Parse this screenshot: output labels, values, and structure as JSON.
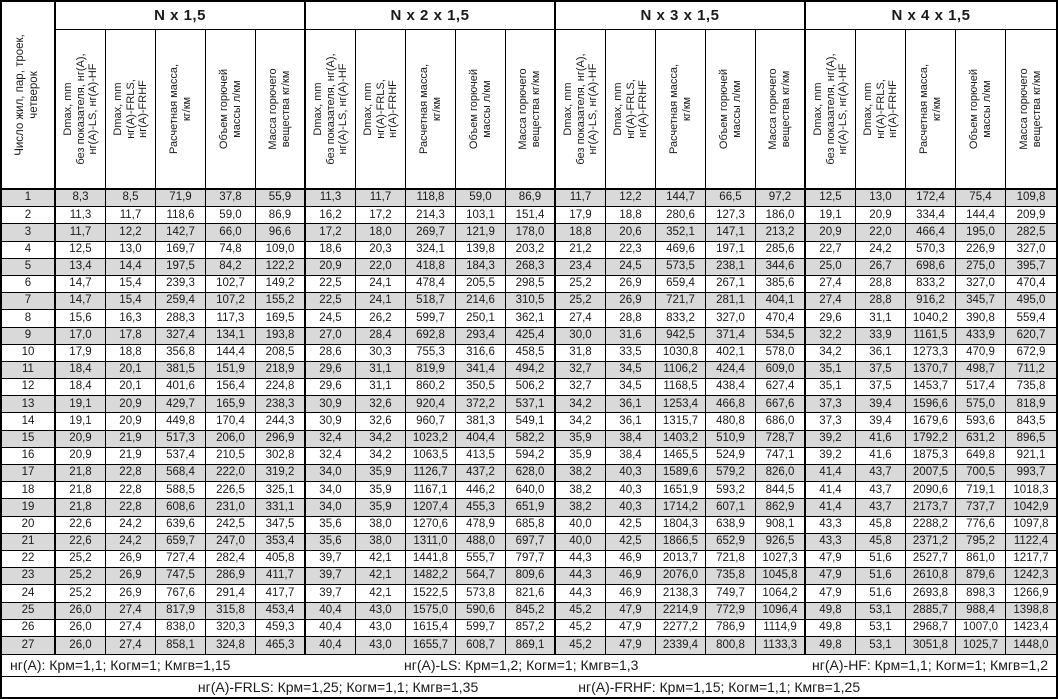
{
  "table": {
    "corner_header": "Число жил, пар, троек,\nчетверок",
    "groups": [
      {
        "title": "N x 1,5"
      },
      {
        "title": "N x 2 x 1,5"
      },
      {
        "title": "N x 3 x 1,5"
      },
      {
        "title": "N x 4 x 1,5"
      }
    ],
    "col_headers": [
      "Dmax, mm\nбез показателя, нг(A),\nнг(A)-LS, нг(A)-HF",
      "Dmax, mm\nнг(A)-FRLS,\nнг(A)-FRHF",
      "Расчетная масса,\nкг/км",
      "Объем горючей\nмассы л/км",
      "Масса горючего\nвещества кг/км"
    ],
    "rows": [
      [
        "1",
        "8,3",
        "8,5",
        "71,9",
        "37,8",
        "55,9",
        "11,3",
        "11,7",
        "118,8",
        "59,0",
        "86,9",
        "11,7",
        "12,2",
        "144,7",
        "66,5",
        "97,2",
        "12,5",
        "13,0",
        "172,4",
        "75,4",
        "109,8"
      ],
      [
        "2",
        "11,3",
        "11,7",
        "118,6",
        "59,0",
        "86,9",
        "16,2",
        "17,2",
        "214,3",
        "103,1",
        "151,4",
        "17,9",
        "18,8",
        "280,6",
        "127,3",
        "186,0",
        "19,1",
        "20,9",
        "334,4",
        "144,4",
        "209,9"
      ],
      [
        "3",
        "11,7",
        "12,2",
        "142,7",
        "66,0",
        "96,6",
        "17,2",
        "18,0",
        "269,7",
        "121,9",
        "178,0",
        "18,8",
        "20,6",
        "352,1",
        "147,1",
        "213,2",
        "20,9",
        "22,0",
        "466,4",
        "195,0",
        "282,5"
      ],
      [
        "4",
        "12,5",
        "13,0",
        "169,7",
        "74,8",
        "109,0",
        "18,6",
        "20,3",
        "324,1",
        "139,8",
        "203,2",
        "21,2",
        "22,3",
        "469,6",
        "197,1",
        "285,6",
        "22,7",
        "24,2",
        "570,3",
        "226,9",
        "327,0"
      ],
      [
        "5",
        "13,4",
        "14,4",
        "197,5",
        "84,2",
        "122,2",
        "20,9",
        "22,0",
        "418,8",
        "184,3",
        "268,3",
        "23,4",
        "24,5",
        "573,5",
        "238,1",
        "344,6",
        "25,0",
        "26,7",
        "698,6",
        "275,0",
        "395,7"
      ],
      [
        "6",
        "14,7",
        "15,4",
        "239,3",
        "102,7",
        "149,2",
        "22,5",
        "24,1",
        "478,4",
        "205,5",
        "298,5",
        "25,2",
        "26,9",
        "659,4",
        "267,1",
        "385,6",
        "27,4",
        "28,8",
        "833,2",
        "327,0",
        "470,4"
      ],
      [
        "7",
        "14,7",
        "15,4",
        "259,4",
        "107,2",
        "155,2",
        "22,5",
        "24,1",
        "518,7",
        "214,6",
        "310,5",
        "25,2",
        "26,9",
        "721,7",
        "281,1",
        "404,1",
        "27,4",
        "28,8",
        "916,2",
        "345,7",
        "495,0"
      ],
      [
        "8",
        "15,6",
        "16,3",
        "288,3",
        "117,3",
        "169,5",
        "24,5",
        "26,2",
        "599,7",
        "250,1",
        "362,1",
        "27,4",
        "28,8",
        "833,2",
        "327,0",
        "470,4",
        "29,6",
        "31,1",
        "1040,2",
        "390,8",
        "559,4"
      ],
      [
        "9",
        "17,0",
        "17,8",
        "327,4",
        "134,1",
        "193,8",
        "27,0",
        "28,4",
        "692,8",
        "293,4",
        "425,4",
        "30,0",
        "31,6",
        "942,5",
        "371,4",
        "534,5",
        "32,2",
        "33,9",
        "1161,5",
        "433,9",
        "620,7"
      ],
      [
        "10",
        "17,9",
        "18,8",
        "356,8",
        "144,4",
        "208,5",
        "28,6",
        "30,3",
        "755,3",
        "316,6",
        "458,5",
        "31,8",
        "33,5",
        "1030,8",
        "402,1",
        "578,0",
        "34,2",
        "36,1",
        "1273,3",
        "470,9",
        "672,9"
      ],
      [
        "11",
        "18,4",
        "20,1",
        "381,5",
        "151,9",
        "218,9",
        "29,6",
        "31,1",
        "819,9",
        "341,4",
        "494,2",
        "32,7",
        "34,5",
        "1106,2",
        "424,4",
        "609,0",
        "35,1",
        "37,5",
        "1370,7",
        "498,7",
        "711,2"
      ],
      [
        "12",
        "18,4",
        "20,1",
        "401,6",
        "156,4",
        "224,8",
        "29,6",
        "31,1",
        "860,2",
        "350,5",
        "506,2",
        "32,7",
        "34,5",
        "1168,5",
        "438,4",
        "627,4",
        "35,1",
        "37,5",
        "1453,7",
        "517,4",
        "735,8"
      ],
      [
        "13",
        "19,1",
        "20,9",
        "429,7",
        "165,9",
        "238,3",
        "30,9",
        "32,6",
        "920,4",
        "372,2",
        "537,1",
        "34,2",
        "36,1",
        "1253,4",
        "466,8",
        "667,6",
        "37,3",
        "39,4",
        "1596,6",
        "575,0",
        "818,9"
      ],
      [
        "14",
        "19,1",
        "20,9",
        "449,8",
        "170,4",
        "244,3",
        "30,9",
        "32,6",
        "960,7",
        "381,3",
        "549,1",
        "34,2",
        "36,1",
        "1315,7",
        "480,8",
        "686,0",
        "37,3",
        "39,4",
        "1679,6",
        "593,6",
        "843,5"
      ],
      [
        "15",
        "20,9",
        "21,9",
        "517,3",
        "206,0",
        "296,9",
        "32,4",
        "34,2",
        "1023,2",
        "404,4",
        "582,2",
        "35,9",
        "38,4",
        "1403,2",
        "510,9",
        "728,7",
        "39,2",
        "41,6",
        "1792,2",
        "631,2",
        "896,5"
      ],
      [
        "16",
        "20,9",
        "21,9",
        "537,4",
        "210,5",
        "302,8",
        "32,4",
        "34,2",
        "1063,5",
        "413,5",
        "594,2",
        "35,9",
        "38,4",
        "1465,5",
        "524,9",
        "747,1",
        "39,2",
        "41,6",
        "1875,3",
        "649,8",
        "921,1"
      ],
      [
        "17",
        "21,8",
        "22,8",
        "568,4",
        "222,0",
        "319,2",
        "34,0",
        "35,9",
        "1126,7",
        "437,2",
        "628,0",
        "38,2",
        "40,3",
        "1589,6",
        "579,2",
        "826,0",
        "41,4",
        "43,7",
        "2007,5",
        "700,5",
        "993,7"
      ],
      [
        "18",
        "21,8",
        "22,8",
        "588,5",
        "226,5",
        "325,1",
        "34,0",
        "35,9",
        "1167,1",
        "446,2",
        "640,0",
        "38,2",
        "40,3",
        "1651,9",
        "593,2",
        "844,5",
        "41,4",
        "43,7",
        "2090,6",
        "719,1",
        "1018,3"
      ],
      [
        "19",
        "21,8",
        "22,8",
        "608,6",
        "231,0",
        "331,1",
        "34,0",
        "35,9",
        "1207,4",
        "455,3",
        "651,9",
        "38,2",
        "40,3",
        "1714,2",
        "607,1",
        "862,9",
        "41,4",
        "43,7",
        "2173,7",
        "737,7",
        "1042,9"
      ],
      [
        "20",
        "22,6",
        "24,2",
        "639,6",
        "242,5",
        "347,5",
        "35,6",
        "38,0",
        "1270,6",
        "478,9",
        "685,8",
        "40,0",
        "42,5",
        "1804,3",
        "638,9",
        "908,1",
        "43,3",
        "45,8",
        "2288,2",
        "776,6",
        "1097,8"
      ],
      [
        "21",
        "22,6",
        "24,2",
        "659,7",
        "247,0",
        "353,4",
        "35,6",
        "38,0",
        "1311,0",
        "488,0",
        "697,7",
        "40,0",
        "42,5",
        "1866,5",
        "652,9",
        "926,5",
        "43,3",
        "45,8",
        "2371,2",
        "795,2",
        "1122,4"
      ],
      [
        "22",
        "25,2",
        "26,9",
        "727,4",
        "282,4",
        "405,8",
        "39,7",
        "42,1",
        "1441,8",
        "555,7",
        "797,7",
        "44,3",
        "46,9",
        "2013,7",
        "721,8",
        "1027,3",
        "47,9",
        "51,6",
        "2527,7",
        "861,0",
        "1217,7"
      ],
      [
        "23",
        "25,2",
        "26,9",
        "747,5",
        "286,9",
        "411,7",
        "39,7",
        "42,1",
        "1482,2",
        "564,7",
        "809,6",
        "44,3",
        "46,9",
        "2076,0",
        "735,8",
        "1045,8",
        "47,9",
        "51,6",
        "2610,8",
        "879,6",
        "1242,3"
      ],
      [
        "24",
        "25,2",
        "26,9",
        "767,6",
        "291,4",
        "417,7",
        "39,7",
        "42,1",
        "1522,5",
        "573,8",
        "821,6",
        "44,3",
        "46,9",
        "2138,3",
        "749,7",
        "1064,2",
        "47,9",
        "51,6",
        "2693,8",
        "898,3",
        "1266,9"
      ],
      [
        "25",
        "26,0",
        "27,4",
        "817,9",
        "315,8",
        "453,4",
        "40,4",
        "43,0",
        "1575,0",
        "590,6",
        "845,2",
        "45,2",
        "47,9",
        "2214,9",
        "772,9",
        "1096,4",
        "49,8",
        "53,1",
        "2885,7",
        "988,4",
        "1398,8"
      ],
      [
        "26",
        "26,0",
        "27,4",
        "838,0",
        "320,3",
        "459,3",
        "40,4",
        "43,0",
        "1615,4",
        "599,7",
        "857,2",
        "45,2",
        "47,9",
        "2277,2",
        "786,9",
        "1114,9",
        "49,8",
        "53,1",
        "2968,7",
        "1007,0",
        "1423,4"
      ],
      [
        "27",
        "26,0",
        "27,4",
        "858,1",
        "324,8",
        "465,3",
        "40,4",
        "43,0",
        "1655,7",
        "608,7",
        "869,1",
        "45,2",
        "47,9",
        "2339,4",
        "800,8",
        "1133,3",
        "49,8",
        "53,1",
        "3051,8",
        "1025,7",
        "1448,0"
      ]
    ]
  },
  "footnotes": {
    "line1": [
      "нг(A): Крм=1,1;  Когм=1;  Кмгв=1,15",
      "нг(A)-LS: Крм=1,2;  Когм=1;  Кмгв=1,3",
      "нг(A)-HF: Крм=1,1;  Когм=1;  Кмгв=1,2"
    ],
    "line2": [
      "нг(A)-FRLS: Крм=1,25;  Когм=1,1;  Кмгв=1,35",
      "нг(A)-FRHF: Крм=1,15;  Когм=1,1;  Кмгв=1,25"
    ]
  },
  "colors": {
    "row_alt": "#d9d9d9",
    "border": "#000000",
    "background": "#ffffff",
    "text": "#1a1a1a"
  }
}
